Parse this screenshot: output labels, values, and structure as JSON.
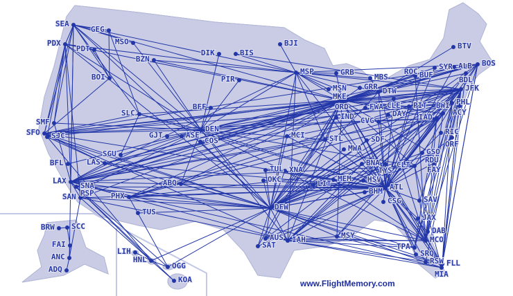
{
  "credit": "www.FlightMemory.com",
  "colors": {
    "land": "#c9cce4",
    "route": "#2236a8",
    "label": "#2a3aa6",
    "inset_border": "#c3c8e6"
  },
  "airports": [
    "SEA",
    "GEG",
    "PDX",
    "PDT",
    "MSO",
    "BZN",
    "BOI",
    "DIK",
    "BIS",
    "PIR",
    "BFF",
    "SLC",
    "SMF",
    "SFO",
    "SJC",
    "GJT",
    "ASE",
    "DEN",
    "COS",
    "SGU",
    "LAS",
    "BFL",
    "LAX",
    "SNA",
    "PSP",
    "SAN",
    "ABQ",
    "PHX",
    "TUS",
    "BRW",
    "SCC",
    "FAI",
    "ANC",
    "ADQ",
    "LIH",
    "HNL",
    "OGG",
    "KOA",
    "BJI",
    "MSP",
    "GRB",
    "MBS",
    "MSN",
    "MKE",
    "GRR",
    "DTW",
    "ORD",
    "CLE",
    "FWA",
    "IND",
    "DAY",
    "CVG",
    "PIT",
    "BTV",
    "BOS",
    "SYR",
    "ALB",
    "ROC",
    "BUF",
    "BDL",
    "JFK",
    "PHL",
    "ACY",
    "BWI",
    "IAD",
    "RIC",
    "ORF",
    "GSO",
    "RDU",
    "CLT",
    "FAY",
    "MCI",
    "STL",
    "MWA",
    "SDF",
    "TUL",
    "XNA",
    "OKC",
    "LIT",
    "MEM",
    "HSV",
    "BNA",
    "TYS",
    "ATL",
    "BHM",
    "CSG",
    "DFW",
    "AUS",
    "SAT",
    "IAH",
    "MSY",
    "SAV",
    "JAX",
    "DAB",
    "MCO",
    "TPA",
    "SRQ",
    "RSW",
    "FLL",
    "MIA"
  ],
  "routes": [
    "SEA-PDX",
    "SEA-GEG",
    "SEA-MSO",
    "SEA-SFO",
    "SEA-LAX",
    "SEA-DEN",
    "SEA-ORD",
    "SEA-BOI",
    "SEA-SLC",
    "SEA-MSP",
    "SEA-ANC",
    "SEA-SMF",
    "SEA-DFW",
    "PDX-SFO",
    "PDX-LAX",
    "PDX-SJC",
    "PDX-DEN",
    "PDX-ORD",
    "PDX-PDT",
    "PDX-SMF",
    "PDX-MSP",
    "PDX-DFW",
    "PDX-SAN",
    "GEG-BOI",
    "GEG-SLC",
    "PDT-BOI",
    "BOI-SFO",
    "MSO-DEN",
    "BZN-MSP",
    "BZN-DEN",
    "BZN-ORD",
    "DIK-DEN",
    "BIS-MSP",
    "BIS-JFK",
    "PIR-DEN",
    "BFF-DEN",
    "SLC-DEN",
    "SLC-ORD",
    "SLC-SFO",
    "SLC-ATL",
    "SFO-ORD",
    "SFO-JFK",
    "SFO-DEN",
    "SFO-IAD",
    "SFO-BOS",
    "SFO-DFW",
    "SFO-LAS",
    "SFO-HNL",
    "SFO-PHL",
    "SFO-ATL",
    "SFO-IAH",
    "SJC-DFW",
    "SJC-ORD",
    "SJC-LAS",
    "SMF-DEN",
    "SMF-LAX",
    "LAX-JFK",
    "LAX-ORD",
    "LAX-DFW",
    "LAX-ATL",
    "LAX-IAD",
    "LAX-BOS",
    "LAX-DEN",
    "LAX-LAS",
    "LAX-PHX",
    "LAX-IAH",
    "LAX-HNL",
    "LAX-OGG",
    "LAX-KOA",
    "LAX-MIA",
    "LAX-PHL",
    "LAX-CLT",
    "LAX-MSP",
    "LAX-DTW",
    "LAX-STL",
    "LAX-SAN",
    "SNA-DFW",
    "SNA-ORD",
    "SNA-ATL",
    "PSP-DEN",
    "SAN-ORD",
    "SAN-DFW",
    "SAN-ANC",
    "SAN-HNL",
    "SAN-IAH",
    "SAN-ATL",
    "BFL-DEN",
    "LAS-ORD",
    "LAS-DFW",
    "LAS-JFK",
    "LAS-ATL",
    "LAS-DTW",
    "SGU-DEN",
    "SGU-SLC",
    "PHX-ORD",
    "PHX-DFW",
    "PHX-JFK",
    "PHX-ATL",
    "PHX-IAD",
    "PHX-OGG",
    "PHX-CLT",
    "PHX-PHL",
    "TUS-DFW",
    "ABQ-DFW",
    "ABQ-ORD",
    "ABQ-DEN",
    "ABQ-ATL",
    "ABQ-LAS",
    "DEN-ORD",
    "DEN-JFK",
    "DEN-ATL",
    "DEN-IAD",
    "DEN-DFW",
    "DEN-MSP",
    "DEN-BOS",
    "DEN-DTW",
    "DEN-CLT",
    "DEN-PHL",
    "DEN-MCO",
    "DEN-IAH",
    "DEN-STL",
    "GJT-DEN",
    "ASE-DEN",
    "COS-DFW",
    "COS-ORD",
    "MSP-ORD",
    "MSP-DTW",
    "MSP-JFK",
    "MSP-ATL",
    "MSP-DFW",
    "MSP-BJI",
    "MSP-GRB",
    "MSP-MKE",
    "MSP-BOS",
    "MSP-MBS",
    "MSP-MSN",
    "MSP-STL",
    "MSP-IAH",
    "ORD-JFK",
    "ORD-BOS",
    "ORD-PHL",
    "ORD-IAD",
    "ORD-ATL",
    "ORD-DFW",
    "ORD-MIA",
    "ORD-MCO",
    "ORD-TPA",
    "ORD-CLT",
    "ORD-IAH",
    "ORD-GRB",
    "ORD-MKE",
    "ORD-DTW",
    "ORD-CLE",
    "ORD-PIT",
    "ORD-BWI",
    "ORD-LGA",
    "ORD-RDU",
    "ORD-FLL",
    "ORD-MSY",
    "ORD-SYR",
    "ORD-ALB",
    "ORD-ROC",
    "ORD-BUF",
    "ORD-BDL",
    "ORD-MCI",
    "ORD-STL",
    "ORD-AUS",
    "ORD-SAT",
    "DTW-JFK",
    "DTW-BOS",
    "DTW-ATL",
    "DTW-MCO",
    "DTW-DFW",
    "DTW-BTV",
    "GRR-ORD",
    "MBS-DTW",
    "CLE-JFK",
    "CLE-ATL",
    "IND-DFW",
    "IND-ATL",
    "CVG-JFK",
    "CVG-ATL",
    "SDF-ATL",
    "SDF-DFW",
    "PIT-ATL",
    "PIT-JFK",
    "BOS-ATL",
    "BOS-DFW",
    "BOS-MCO",
    "BOS-FLL",
    "BOS-CLT",
    "BOS-IAH",
    "BOS-MIA",
    "JFK-ATL",
    "JFK-DFW",
    "JFK-MIA",
    "JFK-FLL",
    "JFK-MCO",
    "JFK-TPA",
    "JFK-IAH",
    "JFK-MSY",
    "JFK-RSW",
    "JFK-SAV",
    "JFK-AUS",
    "JFK-HSV",
    "PHL-ATL",
    "PHL-DFW",
    "PHL-MCO",
    "PHL-FLL",
    "PHL-TPA",
    "IAD-ATL",
    "IAD-DFW",
    "IAD-MCO",
    "IAD-TPA",
    "IAD-IAH",
    "BWI-ATL",
    "BWI-MCO",
    "BWI-DFW",
    "BDL-ATL",
    "BDL-FLL",
    "SYR-ATL",
    "ALB-ATL",
    "BUF-MCO",
    "ROC-ATL",
    "RIC-ATL",
    "ORF-ATL",
    "GSO-DFW",
    "RDU-DFW",
    "RDU-ATL",
    "CLT-DFW",
    "CLT-MCO",
    "CLT-MIA",
    "FAY-ATL",
    "ATL-DFW",
    "ATL-MIA",
    "ATL-FLL",
    "ATL-MCO",
    "ATL-TPA",
    "ATL-JAX",
    "ATL-SAV",
    "ATL-DAB",
    "ATL-RSW",
    "ATL-SRQ",
    "ATL-IAH",
    "ATL-AUS",
    "ATL-SAT",
    "ATL-MSY",
    "ATL-MEM",
    "ATL-BNA",
    "ATL-BHM",
    "ATL-CSG",
    "ATL-STL",
    "ATL-MCI",
    "ATL-OKC",
    "ATL-TUL",
    "ATL-XNA",
    "ATL-LIT",
    "ATL-TYS",
    "ATL-HSV",
    "DFW-MIA",
    "DFW-MCO",
    "DFW-TPA",
    "DFW-FLL",
    "DFW-IAH",
    "DFW-AUS",
    "DFW-SAT",
    "DFW-MSY",
    "DFW-MEM",
    "DFW-BNA",
    "DFW-STL",
    "DFW-MCI",
    "DFW-TUL",
    "DFW-OKC",
    "DFW-LIT",
    "DFW-XNA",
    "DFW-BHM",
    "DFW-HNL",
    "DFW-MWA",
    "IAH-MIA",
    "IAH-MCO",
    "IAH-TPA",
    "IAH-FLL",
    "IAH-MSY",
    "IAH-BNA",
    "AUS-MCO",
    "MSY-FLL",
    "MSY-TPA",
    "MEM-MCO",
    "HNL-LIH",
    "HNL-OGG",
    "HNL-KOA",
    "OGG-DFW",
    "ANC-FAI",
    "ANC-ADQ",
    "FAI-SCC",
    "SCC-BRW",
    "MIA-FLL",
    "JAX-MIA"
  ]
}
